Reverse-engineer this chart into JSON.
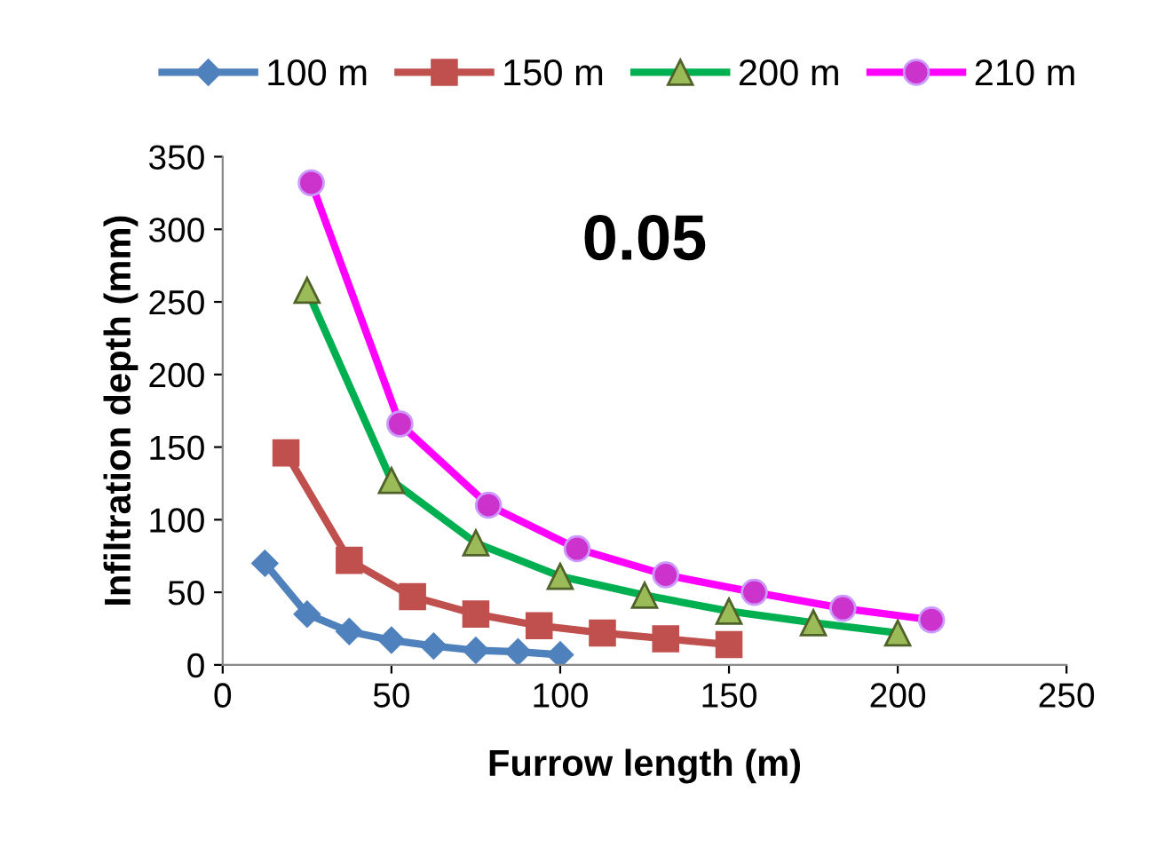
{
  "chart_data": {
    "type": "line",
    "xlabel": "Furrow length (m)",
    "ylabel": "Infiltration depth (mm)",
    "annotations": [
      "0.05"
    ],
    "xlim": [
      0,
      250
    ],
    "xticks": [
      0,
      50,
      100,
      150,
      200,
      250
    ],
    "ylim": [
      0,
      350
    ],
    "yticks": [
      0,
      50,
      100,
      150,
      200,
      250,
      300,
      350
    ],
    "grid": false,
    "legend": "top",
    "series": [
      {
        "name": "100 m",
        "color": "#4f81bd",
        "marker": "diamond",
        "x": [
          12.5,
          25,
          37.5,
          50,
          62.5,
          75,
          87.5,
          100
        ],
        "values": [
          70,
          35,
          23,
          17,
          13,
          10,
          9,
          7
        ]
      },
      {
        "name": "150 m",
        "color": "#c0504d",
        "marker": "square",
        "x": [
          18.75,
          37.5,
          56.25,
          75,
          93.75,
          112.5,
          131.25,
          150
        ],
        "values": [
          146,
          72,
          47,
          35,
          27,
          22,
          18,
          14
        ]
      },
      {
        "name": "200 m",
        "color": "#00b050",
        "marker": "triangle",
        "x": [
          25,
          50,
          75,
          100,
          125,
          150,
          175,
          200
        ],
        "values": [
          258,
          127,
          84,
          61,
          48,
          37,
          29,
          22
        ]
      },
      {
        "name": "210 m",
        "color": "#ff00ff",
        "marker": "circle",
        "x": [
          26.25,
          52.5,
          78.75,
          105,
          131.25,
          157.5,
          183.75,
          210
        ],
        "values": [
          332,
          166,
          110,
          80,
          62,
          50,
          39,
          31
        ]
      }
    ]
  }
}
